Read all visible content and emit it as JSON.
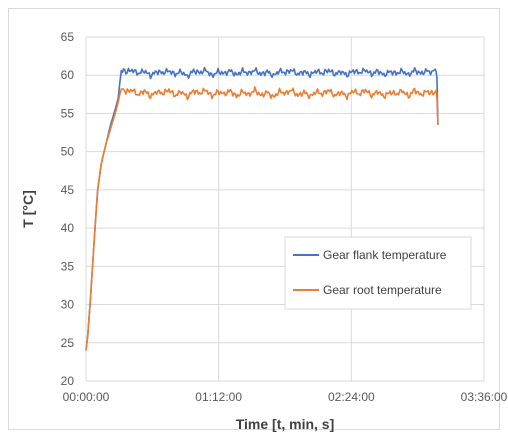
{
  "chart_data": {
    "type": "line",
    "xlabel": "Time [t, min, s]",
    "ylabel": "T [°C]",
    "x_unit": "seconds",
    "xlim": [
      0,
      12960
    ],
    "ylim": [
      20,
      65
    ],
    "x_ticks": [
      {
        "value": 0,
        "label": "00:00:00"
      },
      {
        "value": 4320,
        "label": "01:12:00"
      },
      {
        "value": 8640,
        "label": "02:24:00"
      },
      {
        "value": 12960,
        "label": "03:36:00"
      }
    ],
    "y_ticks": [
      20,
      25,
      30,
      35,
      40,
      45,
      50,
      55,
      60,
      65
    ],
    "grid": true,
    "legend_position": "right-middle",
    "series": [
      {
        "name": "Gear flank temperature",
        "color": "#4472c4",
        "points": [
          [
            0,
            24
          ],
          [
            60,
            26
          ],
          [
            150,
            31
          ],
          [
            260,
            38
          ],
          [
            380,
            45
          ],
          [
            500,
            48.5
          ],
          [
            650,
            51
          ],
          [
            800,
            53.5
          ],
          [
            950,
            55.5
          ],
          [
            1050,
            57
          ],
          [
            1100,
            59
          ],
          [
            1150,
            60.6
          ],
          [
            1300,
            60.4
          ],
          [
            1500,
            60.7
          ],
          [
            1700,
            60.2
          ],
          [
            1900,
            60.6
          ],
          [
            2100,
            59.9
          ],
          [
            2300,
            60.5
          ],
          [
            2500,
            60.3
          ],
          [
            2700,
            60.6
          ],
          [
            2900,
            60.1
          ],
          [
            3100,
            60.5
          ],
          [
            3300,
            59.8
          ],
          [
            3500,
            60.6
          ],
          [
            3700,
            60.3
          ],
          [
            3900,
            60.7
          ],
          [
            4100,
            59.9
          ],
          [
            4300,
            60.5
          ],
          [
            4500,
            60.2
          ],
          [
            4700,
            60.6
          ],
          [
            4900,
            60.0
          ],
          [
            5100,
            60.6
          ],
          [
            5300,
            60.2
          ],
          [
            5500,
            60.7
          ],
          [
            5700,
            60.1
          ],
          [
            5900,
            60.5
          ],
          [
            6100,
            59.9
          ],
          [
            6300,
            60.6
          ],
          [
            6500,
            60.3
          ],
          [
            6700,
            60.7
          ],
          [
            6900,
            60.1
          ],
          [
            7100,
            60.5
          ],
          [
            7300,
            60.0
          ],
          [
            7500,
            60.6
          ],
          [
            7700,
            60.2
          ],
          [
            7900,
            60.7
          ],
          [
            8100,
            60.1
          ],
          [
            8300,
            60.5
          ],
          [
            8500,
            60.0
          ],
          [
            8700,
            60.6
          ],
          [
            8900,
            60.3
          ],
          [
            9100,
            60.7
          ],
          [
            9300,
            60.1
          ],
          [
            9500,
            60.6
          ],
          [
            9700,
            60.0
          ],
          [
            9900,
            60.5
          ],
          [
            10100,
            60.2
          ],
          [
            10300,
            60.6
          ],
          [
            10500,
            60.0
          ],
          [
            10700,
            60.7
          ],
          [
            10900,
            60.2
          ],
          [
            11100,
            60.6
          ],
          [
            11300,
            60.3
          ],
          [
            11400,
            60.5
          ],
          [
            11430,
            59.5
          ],
          [
            11460,
            53.5
          ]
        ]
      },
      {
        "name": "Gear root temperature",
        "color": "#ed7d31",
        "points": [
          [
            0,
            24
          ],
          [
            60,
            26
          ],
          [
            150,
            31
          ],
          [
            260,
            38
          ],
          [
            380,
            45
          ],
          [
            500,
            48.5
          ],
          [
            650,
            51
          ],
          [
            800,
            53
          ],
          [
            950,
            55
          ],
          [
            1050,
            56.5
          ],
          [
            1100,
            57.5
          ],
          [
            1150,
            58.2
          ],
          [
            1300,
            57.8
          ],
          [
            1500,
            58.1
          ],
          [
            1700,
            57.4
          ],
          [
            1900,
            58.0
          ],
          [
            2100,
            57.2
          ],
          [
            2300,
            57.9
          ],
          [
            2500,
            57.6
          ],
          [
            2700,
            58.1
          ],
          [
            2900,
            57.3
          ],
          [
            3100,
            57.9
          ],
          [
            3300,
            57.1
          ],
          [
            3500,
            58.0
          ],
          [
            3700,
            57.6
          ],
          [
            3900,
            58.1
          ],
          [
            4100,
            57.2
          ],
          [
            4300,
            57.9
          ],
          [
            4500,
            57.5
          ],
          [
            4700,
            58.0
          ],
          [
            4900,
            57.2
          ],
          [
            5100,
            57.9
          ],
          [
            5300,
            57.4
          ],
          [
            5500,
            58.1
          ],
          [
            5700,
            57.3
          ],
          [
            5900,
            57.8
          ],
          [
            6100,
            57.1
          ],
          [
            6300,
            57.9
          ],
          [
            6500,
            57.6
          ],
          [
            6700,
            58.1
          ],
          [
            6900,
            57.3
          ],
          [
            7100,
            57.8
          ],
          [
            7300,
            57.2
          ],
          [
            7500,
            57.9
          ],
          [
            7700,
            57.5
          ],
          [
            7900,
            58.1
          ],
          [
            8100,
            57.3
          ],
          [
            8300,
            57.8
          ],
          [
            8500,
            57.2
          ],
          [
            8700,
            58.0
          ],
          [
            8900,
            57.5
          ],
          [
            9100,
            58.1
          ],
          [
            9300,
            57.3
          ],
          [
            9500,
            57.9
          ],
          [
            9700,
            57.2
          ],
          [
            9900,
            57.8
          ],
          [
            10100,
            57.5
          ],
          [
            10300,
            58.0
          ],
          [
            10500,
            57.2
          ],
          [
            10700,
            58.1
          ],
          [
            10900,
            57.4
          ],
          [
            11100,
            57.9
          ],
          [
            11300,
            57.6
          ],
          [
            11400,
            58.0
          ],
          [
            11430,
            57.0
          ],
          [
            11460,
            53.5
          ]
        ]
      }
    ]
  }
}
